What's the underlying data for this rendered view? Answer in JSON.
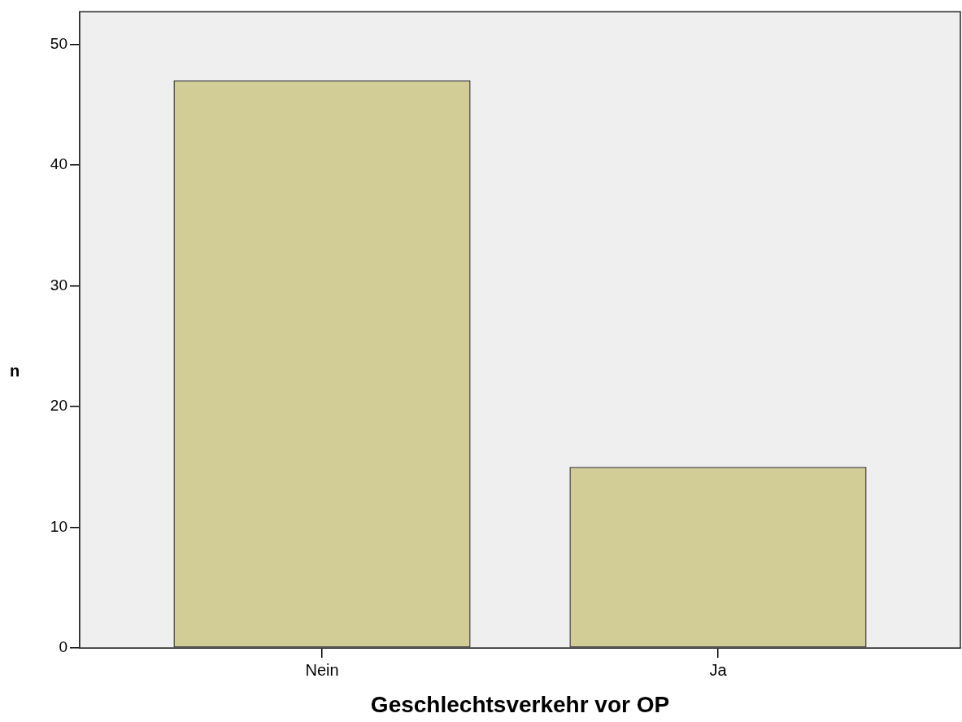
{
  "chart_data": {
    "type": "bar",
    "xlabel": "Geschlechtsverkehr vor OP",
    "ylabel": "n",
    "categories": [
      "Nein",
      "Ja"
    ],
    "values": [
      47,
      15
    ],
    "color": "#d2cd96",
    "ylim": [
      0,
      52.7
    ],
    "yticks": [
      0,
      10,
      20,
      30,
      40,
      50
    ]
  }
}
